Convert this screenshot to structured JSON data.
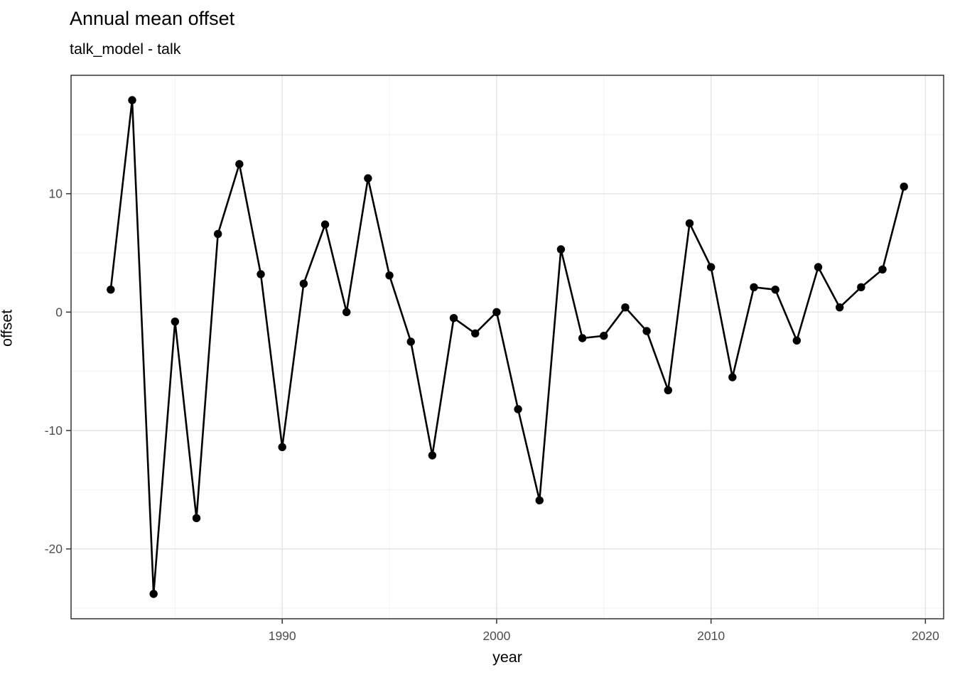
{
  "header": {
    "title": "Annual mean offset",
    "subtitle": "talk_model - talk"
  },
  "axes": {
    "x": {
      "label": "year",
      "major_ticks": [
        {
          "label": "1990",
          "value": 1990
        },
        {
          "label": "2000",
          "value": 2000
        },
        {
          "label": "2010",
          "value": 2010
        },
        {
          "label": "2020",
          "value": 2020
        }
      ],
      "minor_ticks": [
        1985,
        1995,
        2005,
        2015
      ],
      "range": [
        1980.15,
        2020.85
      ]
    },
    "y": {
      "label": "offset",
      "major_ticks": [
        {
          "label": "10",
          "value": 10
        },
        {
          "label": "0",
          "value": 0
        },
        {
          "label": "-10",
          "value": -10
        },
        {
          "label": "-20",
          "value": -20
        }
      ],
      "minor_ticks": [
        15,
        5,
        -5,
        -15,
        -25
      ],
      "range": [
        -25.9,
        20.0
      ]
    }
  },
  "chart_data": {
    "type": "line",
    "title": "Annual mean offset",
    "subtitle": "talk_model - talk",
    "xlabel": "year",
    "ylabel": "offset",
    "x": [
      1982,
      1983,
      1984,
      1985,
      1986,
      1987,
      1988,
      1989,
      1990,
      1991,
      1992,
      1993,
      1994,
      1995,
      1996,
      1997,
      1998,
      1999,
      2000,
      2001,
      2002,
      2003,
      2004,
      2005,
      2006,
      2007,
      2008,
      2009,
      2010,
      2011,
      2012,
      2013,
      2014,
      2015,
      2016,
      2017,
      2018,
      2019
    ],
    "y": [
      1.9,
      17.9,
      -23.8,
      -0.8,
      -17.4,
      6.6,
      12.5,
      3.2,
      -11.4,
      2.4,
      7.4,
      0.0,
      11.3,
      3.1,
      -2.5,
      -12.1,
      -0.5,
      -1.8,
      0.0,
      -8.2,
      -15.9,
      5.3,
      -2.2,
      -2.0,
      0.4,
      -1.6,
      -6.6,
      7.5,
      3.8,
      -5.5,
      2.1,
      1.9,
      -2.4,
      3.8,
      0.4,
      2.1,
      3.6,
      10.6
    ],
    "xlim": [
      1980.15,
      2020.85
    ],
    "ylim": [
      -25.9,
      20.0
    ],
    "marker": "filled-circle",
    "marker_radius": 5.7,
    "line_width": 2.6,
    "grid": true,
    "legend": false
  },
  "colors": {
    "background": "#ffffff",
    "panel_background": "#ffffff",
    "grid_major": "#e3e3e3",
    "grid_minor": "#f0f0f0",
    "panel_border": "#333333",
    "tick_mark": "#333333",
    "tick_label": "#4d4d4d",
    "series": "#000000"
  }
}
